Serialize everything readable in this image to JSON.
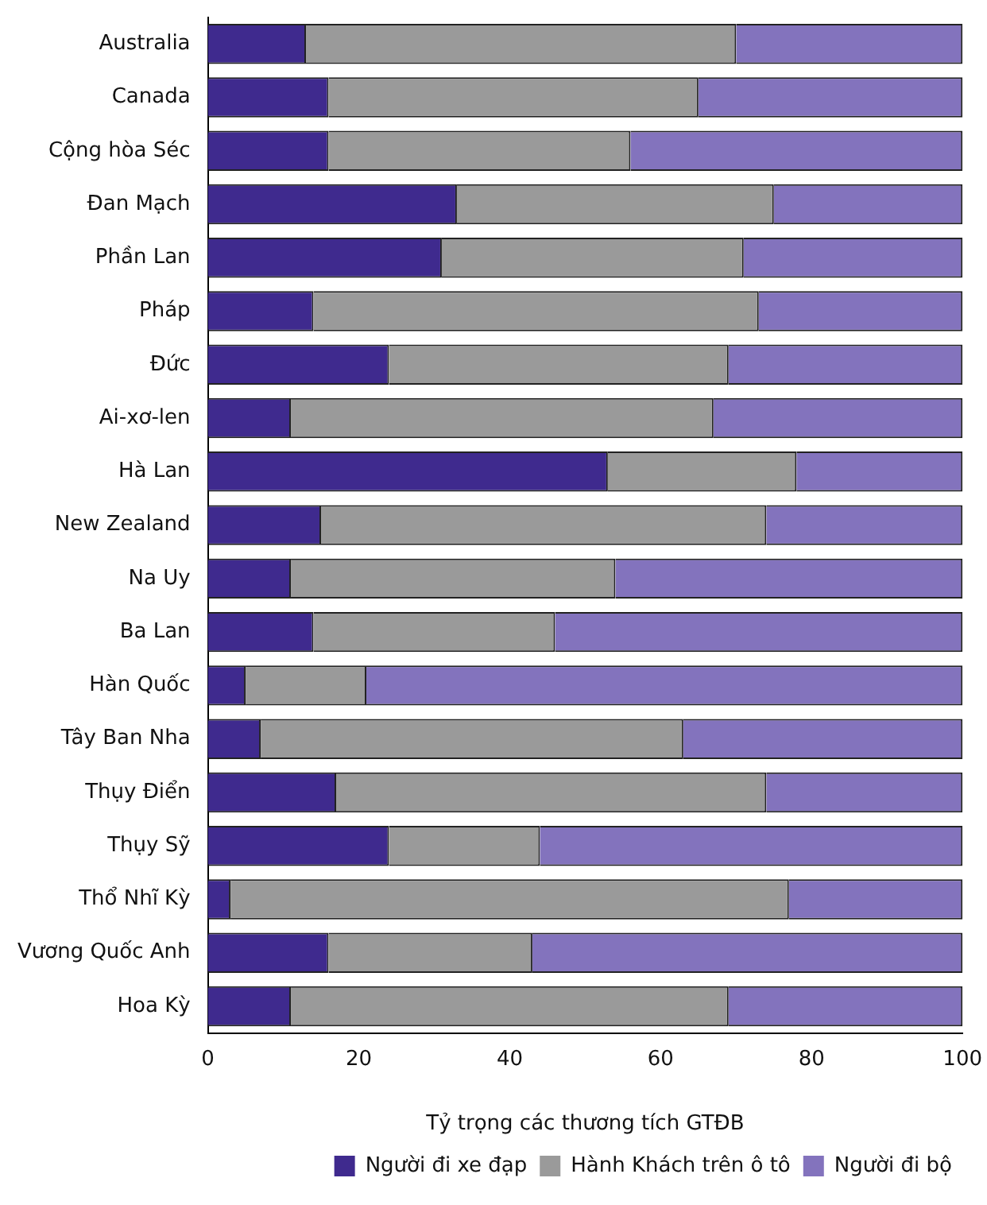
{
  "chart_data": {
    "type": "bar",
    "orientation": "horizontal",
    "stacked": true,
    "xlabel": "Tỷ trọng các thương tích GTĐB",
    "categories": [
      "Australia",
      "Canada",
      "Cộng hòa Séc",
      "Đan Mạch",
      "Phần Lan",
      "Pháp",
      "Đức",
      "Ai-xơ-len",
      "Hà Lan",
      "New Zealand",
      "Na Uy",
      "Ba Lan",
      "Hàn Quốc",
      "Tây Ban Nha",
      "Thụy Điển",
      "Thụy Sỹ",
      "Thổ Nhĩ Kỳ",
      "Vương Quốc Anh",
      "Hoa Kỳ"
    ],
    "series": [
      {
        "name": "Người đi xe đạp",
        "color": "#3f2a8e",
        "values": [
          13,
          16,
          16,
          33,
          31,
          14,
          24,
          11,
          53,
          15,
          11,
          14,
          5,
          7,
          17,
          24,
          3,
          16,
          11
        ]
      },
      {
        "name": "Hành Khách trên ô tô",
        "color": "#9a9a9a",
        "values": [
          57,
          49,
          40,
          42,
          40,
          59,
          45,
          56,
          25,
          59,
          43,
          32,
          16,
          56,
          57,
          20,
          74,
          27,
          58
        ]
      },
      {
        "name": "Người đi bộ",
        "color": "#8373bd",
        "values": [
          30,
          35,
          44,
          25,
          29,
          27,
          31,
          33,
          22,
          26,
          46,
          54,
          79,
          37,
          26,
          56,
          23,
          57,
          31
        ]
      }
    ],
    "xlim": [
      0,
      100
    ],
    "xticks": [
      0,
      20,
      40,
      60,
      80,
      100
    ],
    "grid": false,
    "legend": "bottom"
  }
}
